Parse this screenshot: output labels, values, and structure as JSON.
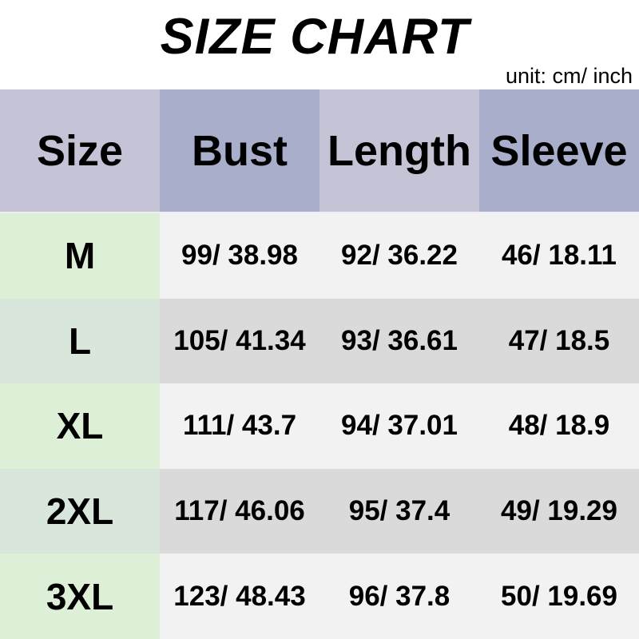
{
  "page": {
    "title": "SIZE CHART",
    "unit_note": "unit: cm/ inch"
  },
  "chart_data": {
    "type": "table",
    "title": "SIZE CHART",
    "unit": "cm/ inch",
    "columns": [
      "Size",
      "Bust",
      "Length",
      "Sleeve"
    ],
    "rows": [
      [
        "M",
        "99/ 38.98",
        "92/ 36.22",
        "46/ 18.11"
      ],
      [
        "L",
        "105/ 41.34",
        "93/ 36.61",
        "47/ 18.5"
      ],
      [
        "XL",
        "111/ 43.7",
        "94/ 37.01",
        "48/ 18.9"
      ],
      [
        "2XL",
        "117/ 46.06",
        "95/ 37.4",
        "49/ 19.29"
      ],
      [
        "3XL",
        "123/ 48.43",
        "96/ 37.8",
        "50/ 19.69"
      ]
    ]
  },
  "colors": {
    "background": "#ffffff",
    "text": "#000000",
    "header_light": "#c5c4d7",
    "header_dark": "#a9aecb",
    "size_green_light": "#ddefd7",
    "size_green_muted": "#d9e6dc",
    "row_gray_light": "#f2f2f2",
    "row_gray_dark": "#dadada"
  }
}
